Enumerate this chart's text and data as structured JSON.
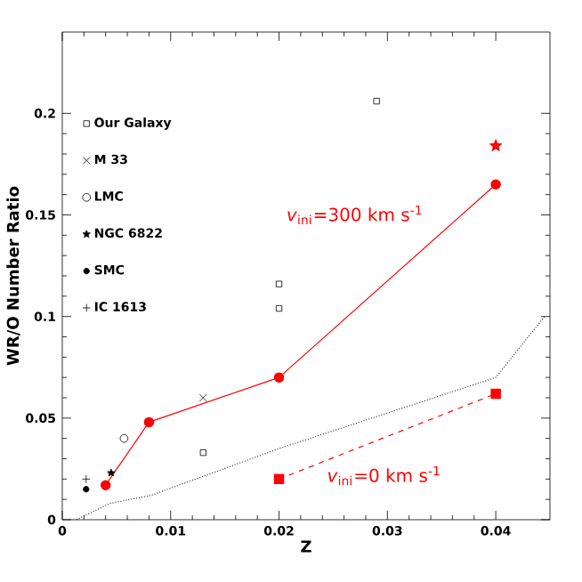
{
  "chart_data": {
    "type": "scatter",
    "xlabel": "Z",
    "ylabel": "WR/O Number Ratio",
    "xlim": [
      0,
      0.045
    ],
    "ylim": [
      0,
      0.24
    ],
    "xticks": [
      0,
      0.01,
      0.02,
      0.03,
      0.04
    ],
    "yticks": [
      0,
      0.05,
      0.1,
      0.15,
      0.2
    ],
    "legend": "top left",
    "grid": false,
    "series": [
      {
        "name": "Our Galaxy",
        "color": "#000000",
        "marker": "square",
        "x": [
          0.029,
          0.02,
          0.02,
          0.013
        ],
        "values": [
          0.206,
          0.116,
          0.104,
          0.033
        ]
      },
      {
        "name": "M 33",
        "color": "#000000",
        "marker": "cross",
        "x": [
          0.013
        ],
        "values": [
          0.06
        ]
      },
      {
        "name": "LMC",
        "color": "#000000",
        "marker": "circle",
        "x": [
          0.0057
        ],
        "values": [
          0.04
        ]
      },
      {
        "name": "NGC 6822",
        "color": "#000000",
        "marker": "star",
        "x": [
          0.0045
        ],
        "values": [
          0.023
        ]
      },
      {
        "name": "SMC",
        "color": "#000000",
        "marker": "dot",
        "x": [
          0.0022
        ],
        "values": [
          0.015
        ]
      },
      {
        "name": "IC 1613",
        "color": "#000000",
        "marker": "plus",
        "x": [
          0.0022
        ],
        "values": [
          0.02
        ]
      },
      {
        "type": "line",
        "color": "#ff0000",
        "marker": "dot",
        "line_style": "solid",
        "x": [
          0.004,
          0.008,
          0.02,
          0.04
        ],
        "values": [
          0.017,
          0.048,
          0.07,
          0.165
        ]
      },
      {
        "color": "#ff0000",
        "marker": "star",
        "x": [
          0.04
        ],
        "values": [
          0.184
        ]
      },
      {
        "type": "line",
        "color": "#ff0000",
        "marker": "square",
        "line_style": "dashed",
        "x": [
          0.02,
          0.04
        ],
        "values": [
          0.02,
          0.062
        ]
      },
      {
        "type": "line",
        "color": "#000000",
        "marker": "none",
        "line_style": "dotted",
        "x": [
          0.0013,
          0.0044,
          0.0082,
          0.02,
          0.04,
          0.0445
        ],
        "values": [
          0,
          0.008,
          0.012,
          0.035,
          0.07,
          0.1
        ]
      }
    ],
    "annotations": [
      "*v*$_{ini}$=300 km s$^{-1}$",
      "*v*$_{ini}$=0 km s$^{-1}$"
    ]
  }
}
